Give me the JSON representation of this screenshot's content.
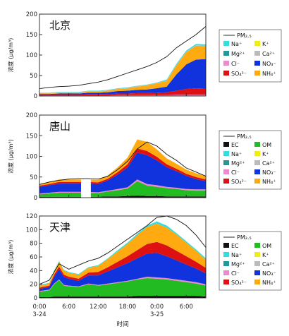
{
  "xaxis": {
    "ticks": [
      {
        "x": 0,
        "label": "0:00",
        "sub": "3-24"
      },
      {
        "x": 6,
        "label": "6:00",
        "sub": ""
      },
      {
        "x": 12,
        "label": "12:00",
        "sub": ""
      },
      {
        "x": 18,
        "label": "18:00",
        "sub": ""
      },
      {
        "x": 24,
        "label": "0:00",
        "sub": "3-25"
      },
      {
        "x": 30,
        "label": "6:00",
        "sub": ""
      }
    ],
    "label": "时间",
    "range": [
      0,
      34
    ]
  },
  "ylabel": "浓度 (μg/m³)",
  "colors": {
    "EC": "#111111",
    "OM": "#22bb22",
    "Na+": "#33dddd",
    "K+": "#eeee11",
    "Mg2+": "#229999",
    "Ca2+": "#bbbbbb",
    "Cl-": "#ee88cc",
    "NO3-": "#1133dd",
    "SO42-": "#dd1111",
    "NH4+": "#ffaa11",
    "PM2.5": "#111111"
  },
  "chart_data": [
    {
      "type": "area",
      "title": "北京",
      "ylim": [
        0,
        200
      ],
      "yticks": [
        0,
        50,
        100,
        150,
        200
      ],
      "x": [
        0,
        2,
        4,
        6,
        8,
        10,
        12,
        14,
        16,
        18,
        20,
        22,
        24,
        26,
        28,
        30,
        32,
        34
      ],
      "series": [
        {
          "name": "Cl⁻",
          "key": "Cl-",
          "values": [
            1,
            1,
            1,
            1,
            1,
            1,
            1,
            1,
            2,
            2,
            2,
            2,
            2,
            2,
            3,
            3,
            3,
            3
          ]
        },
        {
          "name": "SO₄²⁻",
          "key": "SO42-",
          "values": [
            2,
            2,
            2,
            2,
            2,
            3,
            3,
            3,
            4,
            4,
            5,
            5,
            6,
            7,
            10,
            14,
            16,
            15
          ]
        },
        {
          "name": "NO₃⁻",
          "key": "NO3-",
          "values": [
            2,
            2,
            3,
            3,
            3,
            4,
            4,
            5,
            6,
            7,
            8,
            9,
            11,
            14,
            40,
            60,
            70,
            72
          ]
        },
        {
          "name": "NH₄⁺",
          "key": "NH4+",
          "values": [
            1,
            1,
            2,
            2,
            2,
            3,
            3,
            4,
            5,
            6,
            8,
            10,
            12,
            14,
            22,
            30,
            34,
            32
          ]
        },
        {
          "name": "Ca²⁺",
          "key": "Ca2+",
          "values": [
            1,
            1,
            1,
            1,
            1,
            1,
            1,
            1,
            1,
            1,
            1,
            1,
            1,
            1,
            1,
            1,
            1,
            1
          ]
        },
        {
          "name": "Na⁺",
          "key": "Na+",
          "values": [
            1,
            1,
            1,
            1,
            1,
            1,
            1,
            1,
            1,
            1,
            1,
            1,
            1,
            2,
            3,
            3,
            3,
            3
          ]
        }
      ],
      "pm25": [
        18,
        21,
        23,
        24,
        26,
        30,
        34,
        40,
        48,
        56,
        64,
        72,
        82,
        96,
        118,
        134,
        150,
        170
      ],
      "legend": [
        [
          "Na⁺",
          "Na+"
        ],
        [
          "K⁺",
          "K+"
        ],
        [
          "Mg²⁺",
          "Mg2+"
        ],
        [
          "Ca²⁺",
          "Ca2+"
        ],
        [
          "Cl⁻",
          "Cl-"
        ],
        [
          "NO₃⁻",
          "NO3-"
        ],
        [
          "SO₄²⁻",
          "SO42-"
        ],
        [
          "NH₄⁺",
          "NH4+"
        ]
      ]
    },
    {
      "type": "area",
      "title": "唐山",
      "ylim": [
        0,
        200
      ],
      "yticks": [
        0,
        50,
        100,
        150,
        200
      ],
      "x": [
        0,
        2,
        4,
        6,
        8,
        10,
        12,
        14,
        16,
        18,
        20,
        22,
        24,
        26,
        28,
        30,
        32,
        34
      ],
      "gap": [
        8.5,
        10.5
      ],
      "series": [
        {
          "name": "EC",
          "key": "EC",
          "values": [
            2,
            2,
            2,
            2,
            2,
            2,
            2,
            3,
            3,
            4,
            5,
            4,
            4,
            3,
            3,
            3,
            3,
            3
          ]
        },
        {
          "name": "OM",
          "key": "OM",
          "values": [
            6,
            8,
            10,
            10,
            10,
            10,
            9,
            12,
            15,
            18,
            35,
            25,
            22,
            20,
            18,
            15,
            14,
            14
          ]
        },
        {
          "name": "Cl⁻",
          "key": "Cl-",
          "values": [
            2,
            2,
            2,
            2,
            2,
            2,
            2,
            2,
            3,
            3,
            4,
            4,
            4,
            3,
            3,
            3,
            3,
            3
          ]
        },
        {
          "name": "NO₃⁻",
          "key": "NO3-",
          "values": [
            16,
            18,
            20,
            20,
            20,
            20,
            20,
            25,
            35,
            48,
            65,
            70,
            60,
            48,
            40,
            32,
            25,
            20
          ]
        },
        {
          "name": "SO₄²⁻",
          "key": "SO42-",
          "values": [
            3,
            3,
            4,
            4,
            4,
            4,
            4,
            4,
            6,
            8,
            10,
            10,
            9,
            7,
            6,
            5,
            5,
            4
          ]
        },
        {
          "name": "NH₄⁺",
          "key": "NH4+",
          "values": [
            4,
            5,
            6,
            6,
            6,
            6,
            6,
            8,
            12,
            16,
            22,
            22,
            18,
            14,
            12,
            10,
            9,
            8
          ]
        }
      ],
      "pm25": [
        32,
        38,
        42,
        45,
        46,
        46,
        45,
        52,
        68,
        88,
        118,
        135,
        125,
        105,
        90,
        72,
        62,
        52
      ],
      "legend": [
        [
          "EC",
          "EC"
        ],
        [
          "OM",
          "OM"
        ],
        [
          "Na⁺",
          "Na+"
        ],
        [
          "K⁺",
          "K+"
        ],
        [
          "Mg²⁺",
          "Mg2+"
        ],
        [
          "Ca²⁺",
          "Ca2+"
        ],
        [
          "Cl⁻",
          "Cl-"
        ],
        [
          "NO₃⁻",
          "NO3-"
        ],
        [
          "SO₄²⁻",
          "SO42-"
        ],
        [
          "NH₄⁺",
          "NH4+"
        ]
      ]
    },
    {
      "type": "area",
      "title": "天津",
      "ylim": [
        0,
        120
      ],
      "yticks": [
        0,
        20,
        40,
        60,
        80,
        100,
        120
      ],
      "x": [
        0,
        2,
        3,
        4,
        5,
        6,
        8,
        10,
        12,
        14,
        16,
        18,
        20,
        22,
        24,
        26,
        28,
        30,
        32,
        34
      ],
      "series": [
        {
          "name": "EC",
          "key": "EC",
          "values": [
            1,
            1,
            2,
            2,
            2,
            2,
            2,
            2,
            2,
            2,
            2,
            2,
            3,
            3,
            3,
            3,
            3,
            3,
            3,
            2
          ]
        },
        {
          "name": "OM",
          "key": "OM",
          "values": [
            8,
            10,
            18,
            24,
            16,
            15,
            14,
            18,
            16,
            18,
            20,
            22,
            24,
            26,
            25,
            24,
            22,
            20,
            18,
            16
          ]
        },
        {
          "name": "Cl⁻",
          "key": "Cl-",
          "values": [
            1,
            1,
            1,
            1,
            1,
            1,
            1,
            1,
            1,
            1,
            1,
            1,
            1,
            2,
            2,
            2,
            2,
            2,
            2,
            2
          ]
        },
        {
          "name": "NO₃⁻",
          "key": "NO3-",
          "values": [
            3,
            4,
            10,
            15,
            12,
            10,
            8,
            12,
            14,
            18,
            22,
            26,
            30,
            34,
            36,
            32,
            28,
            24,
            20,
            16
          ]
        },
        {
          "name": "SO₄²⁻",
          "key": "SO42-",
          "values": [
            2,
            2,
            3,
            4,
            3,
            3,
            3,
            4,
            5,
            6,
            8,
            10,
            12,
            14,
            16,
            16,
            14,
            12,
            10,
            8
          ]
        },
        {
          "name": "NH₄⁺",
          "key": "NH4+",
          "values": [
            3,
            3,
            5,
            7,
            6,
            6,
            6,
            7,
            9,
            12,
            15,
            18,
            22,
            25,
            27,
            26,
            24,
            20,
            16,
            12
          ]
        },
        {
          "name": "Na⁺",
          "key": "Na+",
          "values": [
            1,
            1,
            1,
            1,
            1,
            1,
            1,
            1,
            1,
            1,
            2,
            2,
            2,
            2,
            3,
            3,
            2,
            2,
            2,
            2
          ]
        }
      ],
      "pm25": [
        20,
        26,
        38,
        50,
        46,
        42,
        48,
        54,
        58,
        66,
        76,
        86,
        96,
        106,
        118,
        120,
        115,
        106,
        92,
        74
      ],
      "legend": [
        [
          "EC",
          "EC"
        ],
        [
          "OM",
          "OM"
        ],
        [
          "Na⁺",
          "Na+"
        ],
        [
          "K⁺",
          "K+"
        ],
        [
          "Mg²⁺",
          "Mg2+"
        ],
        [
          "Ca²⁺",
          "Ca2+"
        ],
        [
          "Cl⁻",
          "Cl-"
        ],
        [
          "NO₃⁻",
          "NO3-"
        ],
        [
          "SO₄²⁻",
          "SO42-"
        ],
        [
          "NH₄⁺",
          "NH4+"
        ]
      ]
    }
  ],
  "pm_label": "PM₂.₅"
}
